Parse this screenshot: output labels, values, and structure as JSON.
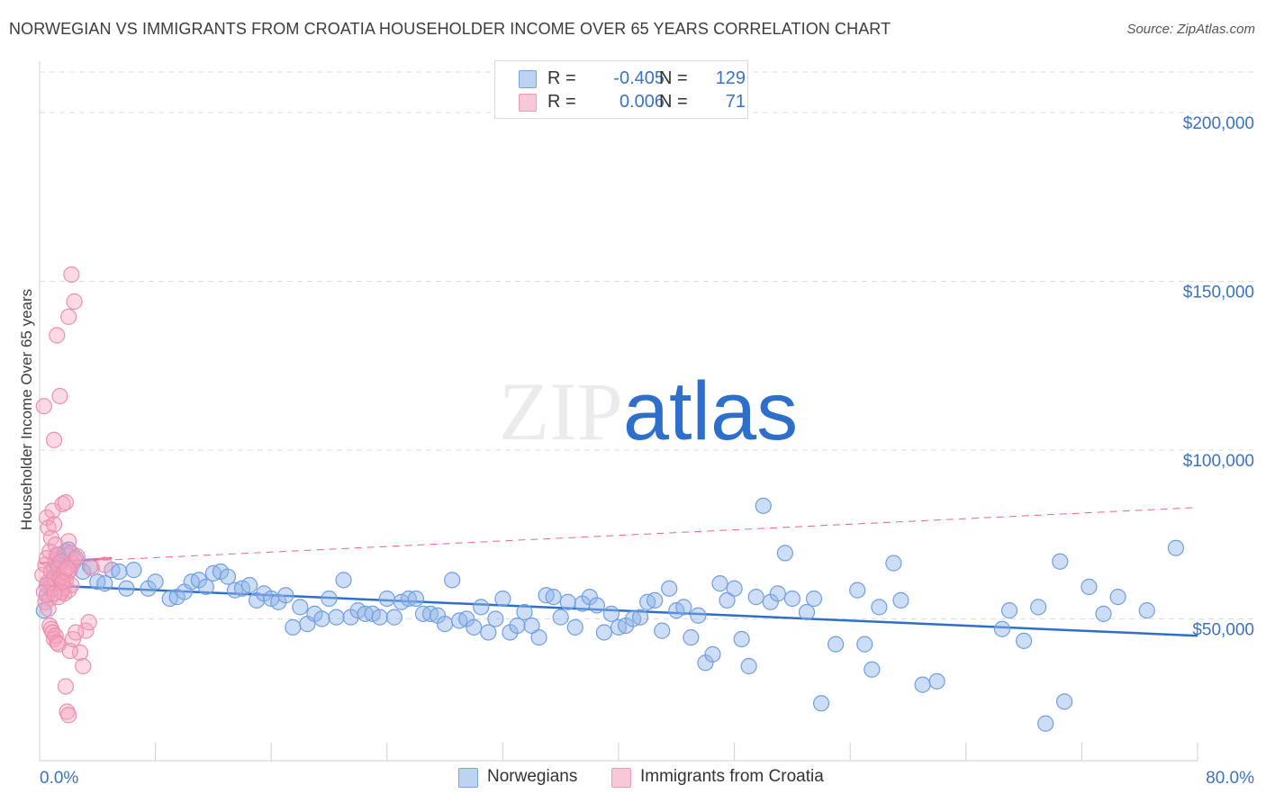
{
  "chart_data": {
    "type": "scatter",
    "title": "NORWEGIAN VS IMMIGRANTS FROM CROATIA HOUSEHOLDER INCOME OVER 65 YEARS CORRELATION CHART",
    "source": "Source: ZipAtlas.com",
    "ylabel": "Householder Income Over 65 years",
    "xlabel": "",
    "xlim": [
      0,
      80
    ],
    "ylim": [
      8000,
      212000
    ],
    "x_tick_labels": [
      "0.0%",
      "80.0%"
    ],
    "y_ticks": [
      50000,
      100000,
      150000,
      200000
    ],
    "y_tick_labels": [
      "$50,000",
      "$100,000",
      "$150,000",
      "$200,000"
    ],
    "watermark": "ZIPatlas",
    "legend": [
      {
        "r_label": "R =",
        "r_value": "-0.405",
        "n_label": "N =",
        "n_value": "129"
      },
      {
        "r_label": "R =",
        "r_value": "0.006",
        "n_label": "N =",
        "n_value": "71"
      }
    ],
    "series": [
      {
        "name": "Norwegians",
        "color": "#8fb4e8",
        "line_color": "#2e6fcc",
        "trend": {
          "x": [
            0,
            80
          ],
          "y": [
            60000,
            45000
          ],
          "style": "solid"
        },
        "points": [
          [
            0.3,
            52500
          ],
          [
            0.5,
            57000
          ],
          [
            0.8,
            61000
          ],
          [
            1.0,
            65000
          ],
          [
            1.2,
            66000
          ],
          [
            1.3,
            69000
          ],
          [
            1.5,
            67000
          ],
          [
            1.8,
            70000
          ],
          [
            2.0,
            70500
          ],
          [
            2.5,
            68000
          ],
          [
            3.0,
            64000
          ],
          [
            3.5,
            65500
          ],
          [
            4.0,
            61000
          ],
          [
            4.5,
            60500
          ],
          [
            5.0,
            64500
          ],
          [
            5.5,
            64000
          ],
          [
            6.0,
            59000
          ],
          [
            6.5,
            64500
          ],
          [
            7.5,
            59000
          ],
          [
            8.0,
            61000
          ],
          [
            9.0,
            56000
          ],
          [
            9.5,
            56500
          ],
          [
            10.0,
            58000
          ],
          [
            10.5,
            61000
          ],
          [
            11.0,
            61500
          ],
          [
            11.5,
            59500
          ],
          [
            12.0,
            63500
          ],
          [
            12.5,
            64000
          ],
          [
            13.0,
            62500
          ],
          [
            13.5,
            58500
          ],
          [
            14.0,
            59000
          ],
          [
            14.5,
            60000
          ],
          [
            15.0,
            55500
          ],
          [
            15.5,
            57500
          ],
          [
            16.0,
            56000
          ],
          [
            16.5,
            55000
          ],
          [
            17.0,
            57000
          ],
          [
            17.5,
            47500
          ],
          [
            18.0,
            53500
          ],
          [
            18.5,
            48500
          ],
          [
            19.0,
            51500
          ],
          [
            19.5,
            50000
          ],
          [
            20.0,
            56000
          ],
          [
            20.5,
            50500
          ],
          [
            21.0,
            61500
          ],
          [
            21.5,
            50500
          ],
          [
            22.0,
            52500
          ],
          [
            22.5,
            51500
          ],
          [
            23.0,
            51500
          ],
          [
            23.5,
            50500
          ],
          [
            24.0,
            56000
          ],
          [
            24.5,
            50500
          ],
          [
            25.0,
            55000
          ],
          [
            25.5,
            56000
          ],
          [
            26.0,
            56000
          ],
          [
            26.5,
            51500
          ],
          [
            27.0,
            51500
          ],
          [
            27.5,
            51000
          ],
          [
            28.0,
            48500
          ],
          [
            28.5,
            61500
          ],
          [
            29.0,
            49500
          ],
          [
            29.5,
            50000
          ],
          [
            30.0,
            47500
          ],
          [
            30.5,
            53500
          ],
          [
            31.0,
            46000
          ],
          [
            31.5,
            50000
          ],
          [
            32.0,
            56000
          ],
          [
            32.5,
            46000
          ],
          [
            33.0,
            48000
          ],
          [
            33.5,
            52000
          ],
          [
            34.0,
            48000
          ],
          [
            34.5,
            44500
          ],
          [
            35.0,
            57000
          ],
          [
            35.5,
            56500
          ],
          [
            36.0,
            50500
          ],
          [
            36.5,
            55000
          ],
          [
            37.0,
            47500
          ],
          [
            37.5,
            54500
          ],
          [
            38.0,
            56500
          ],
          [
            38.5,
            54000
          ],
          [
            39.0,
            46000
          ],
          [
            39.5,
            51500
          ],
          [
            40.0,
            47500
          ],
          [
            40.5,
            48000
          ],
          [
            41.0,
            50000
          ],
          [
            41.5,
            50500
          ],
          [
            42.0,
            55000
          ],
          [
            42.5,
            55500
          ],
          [
            43.0,
            46500
          ],
          [
            43.5,
            59000
          ],
          [
            44.0,
            52500
          ],
          [
            44.5,
            53500
          ],
          [
            45.0,
            44500
          ],
          [
            45.5,
            51000
          ],
          [
            46.0,
            37000
          ],
          [
            46.5,
            39500
          ],
          [
            47.0,
            60500
          ],
          [
            47.5,
            55500
          ],
          [
            48.0,
            59000
          ],
          [
            48.5,
            44000
          ],
          [
            49.0,
            36000
          ],
          [
            49.5,
            56500
          ],
          [
            50.0,
            83500
          ],
          [
            50.5,
            55000
          ],
          [
            51.0,
            57500
          ],
          [
            51.5,
            69500
          ],
          [
            52.0,
            56000
          ],
          [
            53.0,
            52000
          ],
          [
            53.5,
            56000
          ],
          [
            54.0,
            25000
          ],
          [
            55.0,
            42500
          ],
          [
            56.5,
            58500
          ],
          [
            57.0,
            42500
          ],
          [
            57.5,
            35000
          ],
          [
            58.0,
            53500
          ],
          [
            59.0,
            66500
          ],
          [
            59.5,
            55500
          ],
          [
            61.0,
            30500
          ],
          [
            62.0,
            31500
          ],
          [
            66.5,
            47000
          ],
          [
            67.0,
            52500
          ],
          [
            68.0,
            43500
          ],
          [
            69.0,
            53500
          ],
          [
            69.5,
            19000
          ],
          [
            70.5,
            67000
          ],
          [
            70.8,
            25500
          ],
          [
            72.5,
            59500
          ],
          [
            73.5,
            51500
          ],
          [
            74.5,
            56500
          ],
          [
            76.5,
            52500
          ],
          [
            78.5,
            71000
          ]
        ]
      },
      {
        "name": "Immigrants from Croatia",
        "color": "#f5a3bd",
        "line_color": "#e8668f",
        "trend": {
          "x": [
            0,
            80
          ],
          "y": [
            66500,
            83000
          ],
          "style": "dashed"
        },
        "solid_segment": {
          "x": [
            0,
            5
          ],
          "y": [
            66500,
            68000
          ]
        },
        "points": [
          [
            0.2,
            63000
          ],
          [
            0.3,
            58000
          ],
          [
            0.4,
            66000
          ],
          [
            0.5,
            68000
          ],
          [
            0.6,
            61000
          ],
          [
            0.7,
            56000
          ],
          [
            0.8,
            64000
          ],
          [
            0.9,
            59000
          ],
          [
            1.0,
            62000
          ],
          [
            1.1,
            67000
          ],
          [
            0.3,
            113000
          ],
          [
            0.5,
            80000
          ],
          [
            0.6,
            77000
          ],
          [
            0.7,
            70000
          ],
          [
            0.8,
            74000
          ],
          [
            0.9,
            82000
          ],
          [
            1.0,
            78000
          ],
          [
            1.1,
            72000
          ],
          [
            1.2,
            69000
          ],
          [
            1.3,
            65000
          ],
          [
            0.4,
            55000
          ],
          [
            0.5,
            60000
          ],
          [
            0.6,
            53000
          ],
          [
            0.7,
            48000
          ],
          [
            0.8,
            47000
          ],
          [
            0.9,
            46000
          ],
          [
            1.0,
            44000
          ],
          [
            1.1,
            45000
          ],
          [
            1.2,
            43000
          ],
          [
            1.3,
            42500
          ],
          [
            1.4,
            62000
          ],
          [
            1.5,
            60500
          ],
          [
            1.6,
            59000
          ],
          [
            1.7,
            57500
          ],
          [
            1.8,
            61500
          ],
          [
            1.9,
            63500
          ],
          [
            2.0,
            58500
          ],
          [
            2.1,
            64500
          ],
          [
            2.2,
            60000
          ],
          [
            2.3,
            66500
          ],
          [
            1.2,
            134000
          ],
          [
            1.4,
            116000
          ],
          [
            1.6,
            84000
          ],
          [
            1.8,
            84500
          ],
          [
            2.0,
            139500
          ],
          [
            2.2,
            152000
          ],
          [
            2.4,
            144000
          ],
          [
            2.0,
            73000
          ],
          [
            2.2,
            69500
          ],
          [
            2.4,
            67500
          ],
          [
            1.0,
            103000
          ],
          [
            1.5,
            67000
          ],
          [
            1.7,
            64000
          ],
          [
            1.9,
            65000
          ],
          [
            2.6,
            68500
          ],
          [
            2.8,
            40000
          ],
          [
            3.0,
            36000
          ],
          [
            3.2,
            46500
          ],
          [
            3.4,
            49000
          ],
          [
            3.6,
            65000
          ],
          [
            1.8,
            30000
          ],
          [
            1.9,
            22500
          ],
          [
            2.0,
            21500
          ],
          [
            2.1,
            40500
          ],
          [
            2.3,
            44000
          ],
          [
            2.5,
            46000
          ],
          [
            1.3,
            56500
          ],
          [
            1.5,
            58000
          ],
          [
            1.6,
            61000
          ],
          [
            4.5,
            66000
          ],
          [
            1.0,
            57500
          ]
        ]
      }
    ]
  },
  "bottom_legend": [
    "Norwegians",
    "Immigrants from Croatia"
  ]
}
